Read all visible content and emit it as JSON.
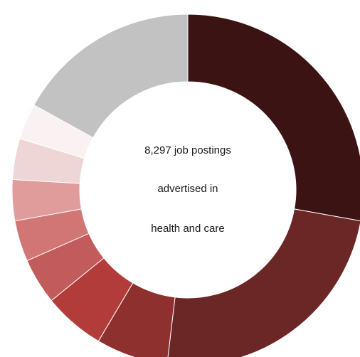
{
  "chart_data": {
    "type": "pie",
    "donut": true,
    "title": "",
    "center_text": [
      "8,297 job postings",
      "advertised in",
      "health and care"
    ],
    "slices": [
      {
        "value": 29.5,
        "color": "#3a1312"
      },
      {
        "value": 25.5,
        "color": "#6b2626"
      },
      {
        "value": 7.0,
        "color": "#8e302e"
      },
      {
        "value": 6.0,
        "color": "#b23c3a"
      },
      {
        "value": 4.5,
        "color": "#c25b5b"
      },
      {
        "value": 4.0,
        "color": "#d27575"
      },
      {
        "value": 4.0,
        "color": "#e09b9b"
      },
      {
        "value": 4.0,
        "color": "#eed6d6"
      },
      {
        "value": 3.5,
        "color": "#faf2f2"
      },
      {
        "value": 18.0,
        "color": "#c2c2c2"
      }
    ],
    "legend": "none"
  }
}
